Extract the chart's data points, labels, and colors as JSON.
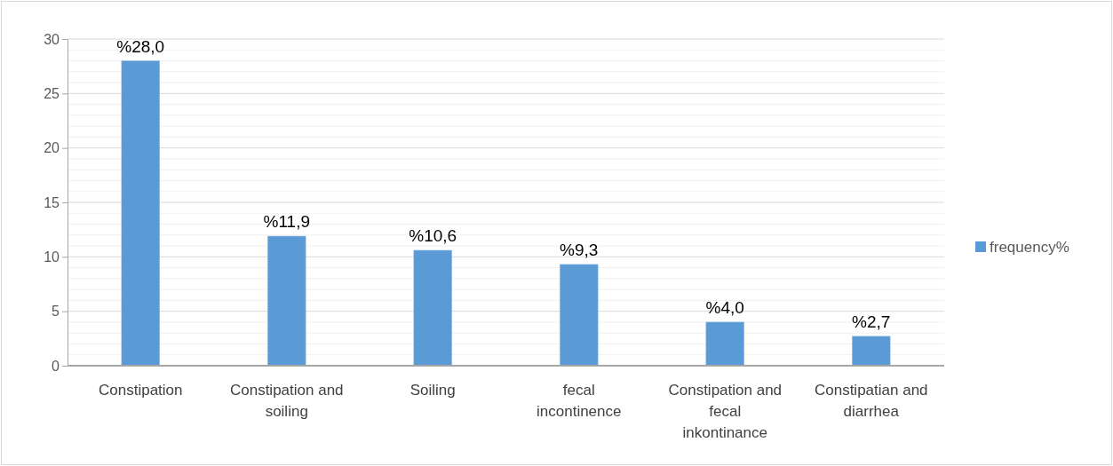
{
  "chart_data": {
    "type": "bar",
    "categories": [
      "Constipation",
      "Constipation and soiling",
      "Soiling",
      "fecal incontinence",
      "Constipation and fecal inkontinance",
      "Constipatian and diarrhea"
    ],
    "series": [
      {
        "name": "frequency%",
        "color": "#5b9bd5",
        "values": [
          28.0,
          11.9,
          10.6,
          9.3,
          4.0,
          2.7
        ],
        "value_labels": [
          "%28,0",
          "%11,9",
          "%10,6",
          "%9,3",
          "%4,0",
          "%2,7"
        ]
      }
    ],
    "ylim": [
      0,
      30
    ],
    "yticks": [
      0,
      {
        "value": 1,
        "label": null
      },
      {
        "value": 2,
        "label": null
      },
      {
        "value": 3,
        "label": null
      },
      {
        "value": 4,
        "label": null
      },
      5,
      {
        "value": 6,
        "label": null
      },
      {
        "value": 7,
        "label": null
      },
      {
        "value": 8,
        "label": null
      },
      {
        "value": 9,
        "label": null
      },
      10,
      {
        "value": 11,
        "label": null
      },
      {
        "value": 12,
        "label": null
      },
      {
        "value": 13,
        "label": null
      },
      {
        "value": 14,
        "label": null
      },
      15,
      {
        "value": 16,
        "label": null
      },
      {
        "value": 17,
        "label": null
      },
      {
        "value": 18,
        "label": null
      },
      {
        "value": 19,
        "label": null
      },
      20,
      {
        "value": 21,
        "label": null
      },
      {
        "value": 22,
        "label": null
      },
      {
        "value": 23,
        "label": null
      },
      {
        "value": 24,
        "label": null
      },
      25,
      {
        "value": 26,
        "label": null
      },
      {
        "value": 27,
        "label": null
      },
      {
        "value": 28,
        "label": null
      },
      {
        "value": 29,
        "label": null
      },
      30
    ],
    "grid": "y",
    "legend": "right"
  }
}
